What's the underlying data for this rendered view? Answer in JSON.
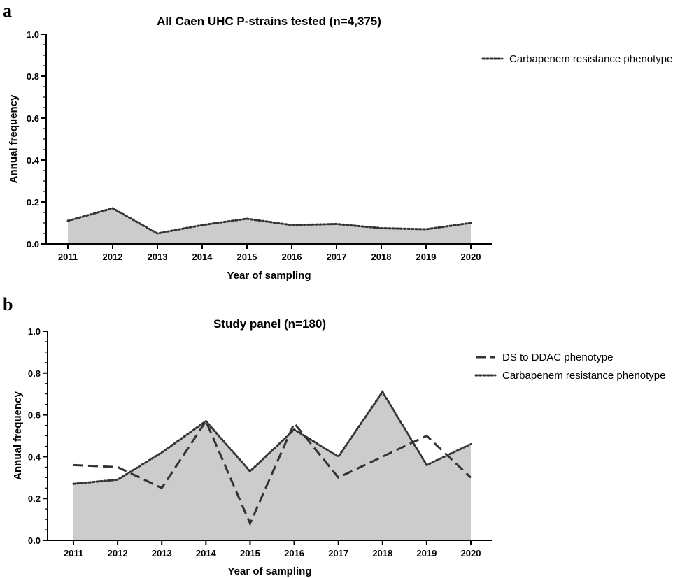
{
  "chart_data": [
    {
      "panel_label": "a",
      "type": "area",
      "title": "All Caen UHC P-strains tested (n=4,375)",
      "xlabel": "Year of sampling",
      "ylabel": "Annual frequency",
      "categories": [
        "2011",
        "2012",
        "2013",
        "2014",
        "2015",
        "2016",
        "2017",
        "2018",
        "2019",
        "2020"
      ],
      "ylim": [
        0,
        1.0
      ],
      "yticks": [
        "0.0",
        "0.2",
        "0.4",
        "0.6",
        "0.8",
        "1.0"
      ],
      "legend_position": "top-right",
      "series": [
        {
          "name": "Carbapenem resistance phenotype",
          "style": "dotted",
          "fill": true,
          "values": [
            0.11,
            0.17,
            0.05,
            0.09,
            0.12,
            0.09,
            0.095,
            0.075,
            0.07,
            0.1
          ]
        }
      ]
    },
    {
      "panel_label": "b",
      "type": "area",
      "title": "Study panel (n=180)",
      "xlabel": "Year of sampling",
      "ylabel": "Annual frequency",
      "categories": [
        "2011",
        "2012",
        "2013",
        "2014",
        "2015",
        "2016",
        "2017",
        "2018",
        "2019",
        "2020"
      ],
      "ylim": [
        0,
        1.0
      ],
      "yticks": [
        "0.0",
        "0.2",
        "0.4",
        "0.6",
        "0.8",
        "1.0"
      ],
      "legend_position": "top-right",
      "series": [
        {
          "name": "DS to DDAC phenotype",
          "style": "dashed",
          "fill": false,
          "values": [
            0.36,
            0.35,
            0.25,
            0.57,
            0.08,
            0.56,
            0.3,
            0.4,
            0.5,
            0.3
          ]
        },
        {
          "name": "Carbapenem resistance phenotype",
          "style": "dotted",
          "fill": true,
          "values": [
            0.27,
            0.29,
            0.42,
            0.57,
            0.33,
            0.53,
            0.4,
            0.71,
            0.36,
            0.46
          ]
        }
      ]
    }
  ],
  "colors": {
    "fill": "#cccccc",
    "line": "#333333",
    "axis": "#000000"
  }
}
